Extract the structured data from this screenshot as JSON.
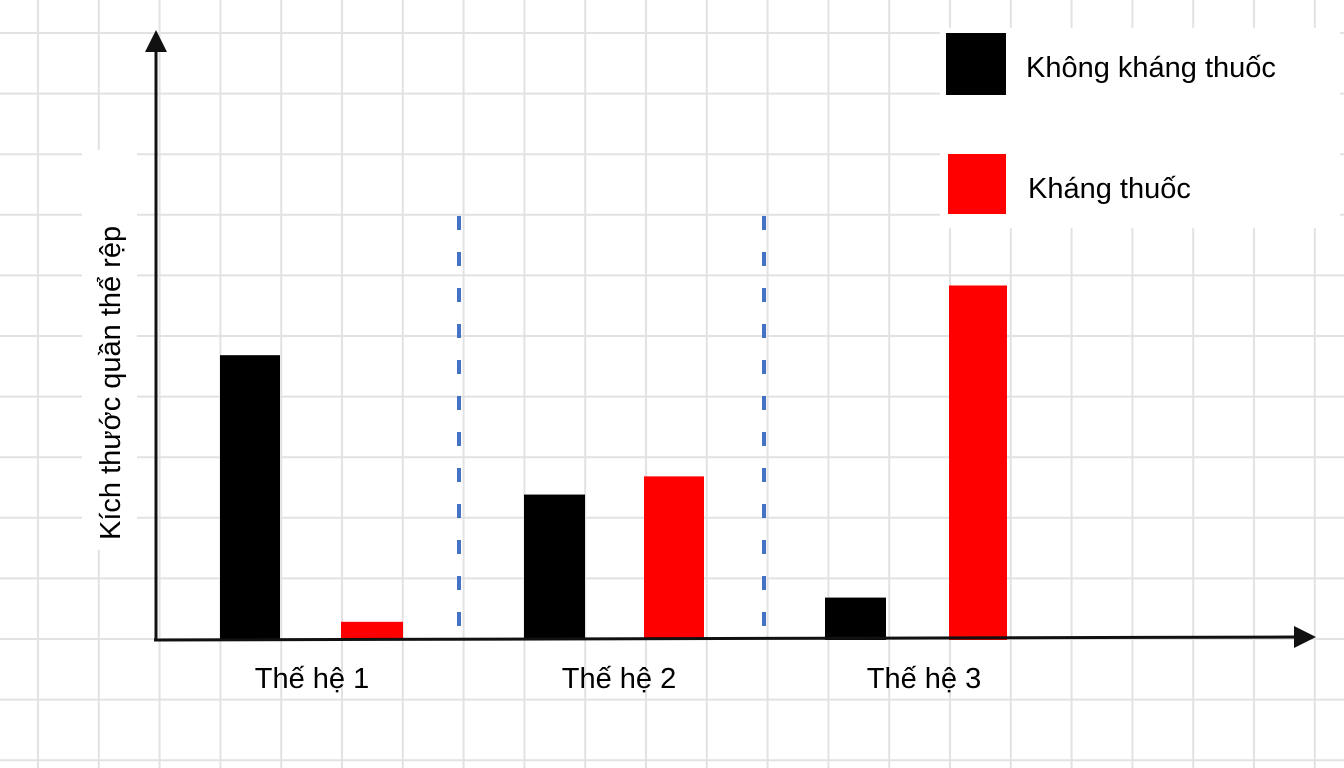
{
  "chart_data": {
    "type": "bar",
    "title": "",
    "xlabel": "",
    "ylabel": "Kích thước quần thể rệp",
    "categories": [
      "Thế hệ 1",
      "Thế hệ 2",
      "Thế hệ 3"
    ],
    "series": [
      {
        "name": "Không kháng thuốc",
        "color": "#000000",
        "values": [
          4.7,
          2.4,
          0.7
        ]
      },
      {
        "name": "Kháng thuốc",
        "color": "#ff0000",
        "values": [
          0.3,
          2.7,
          5.85
        ]
      }
    ],
    "ylim": [
      0,
      10
    ],
    "y_units": "grid squares (no numeric ticks shown)",
    "grid": true,
    "legend_placement": "top-right",
    "separator_color": "#4472c4"
  }
}
